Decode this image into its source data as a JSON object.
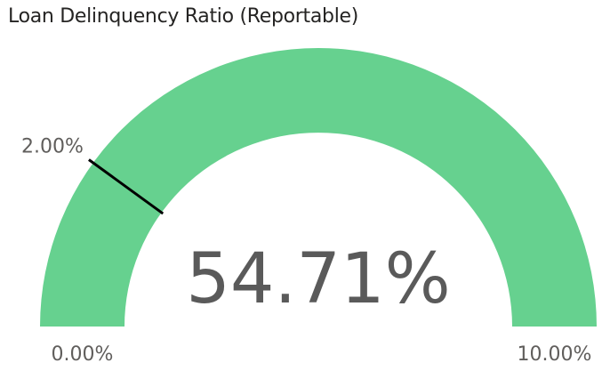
{
  "chart_data": {
    "type": "gauge",
    "title": "Loan Delinquency Ratio (Reportable)",
    "value": 54.71,
    "value_label": "54.71%",
    "min": 0,
    "max": 10,
    "min_label": "0.00%",
    "max_label": "10.00%",
    "target": 2.0,
    "target_label": "2.00%",
    "colors": {
      "fill": "#66d18f",
      "target": "#000000",
      "text": "#605e5c"
    }
  }
}
